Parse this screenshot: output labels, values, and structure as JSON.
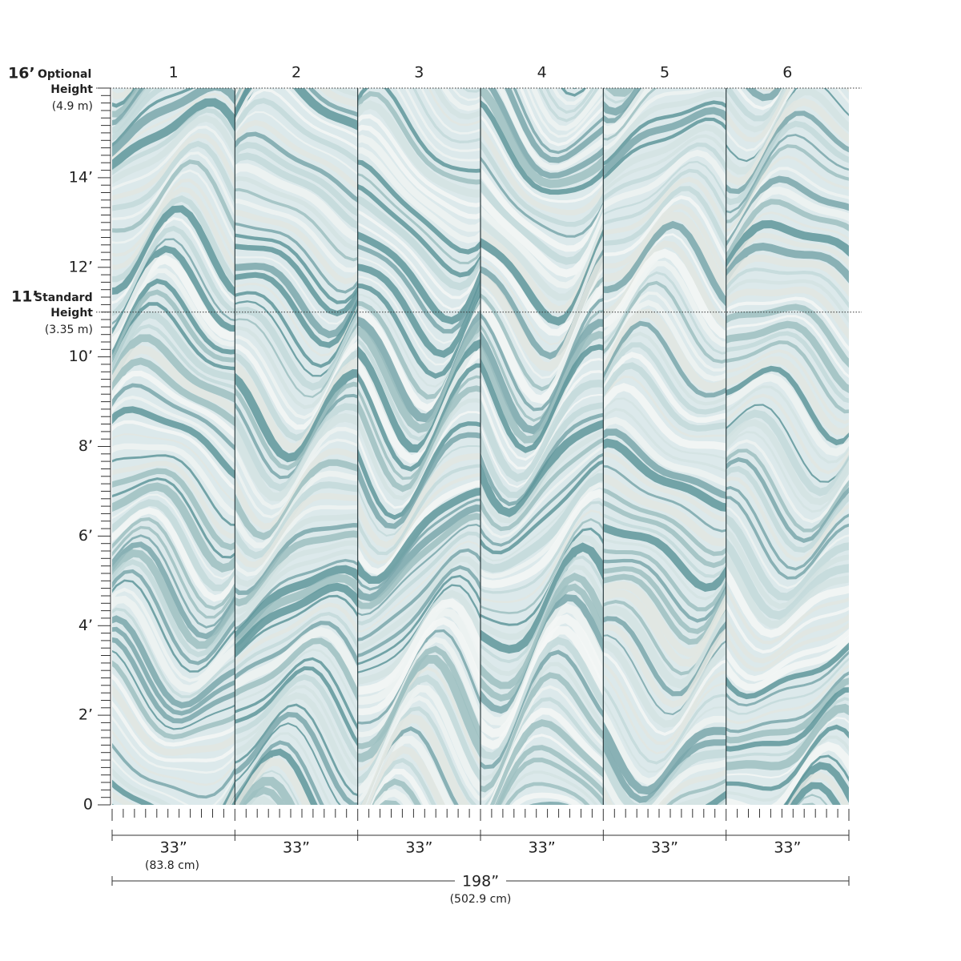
{
  "panels": [
    "1",
    "2",
    "3",
    "4",
    "5",
    "6"
  ],
  "height_labels": [
    "0",
    "2’",
    "4’",
    "6’",
    "8’",
    "10’",
    "12’",
    "14’"
  ],
  "optional_height": {
    "feet": "16’",
    "label": "Optional",
    "label2": "Height",
    "metric": "(4.9 m)"
  },
  "standard_height": {
    "feet": "11’",
    "label": "Standard",
    "label2": "Height",
    "metric": "(3.35 m)"
  },
  "panel_widths": [
    "33”",
    "33”",
    "33”",
    "33”",
    "33”",
    "33”"
  ],
  "panel_width_metric": "(83.8 cm)",
  "total_width": "198”",
  "total_width_metric": "(502.9 cm)"
}
